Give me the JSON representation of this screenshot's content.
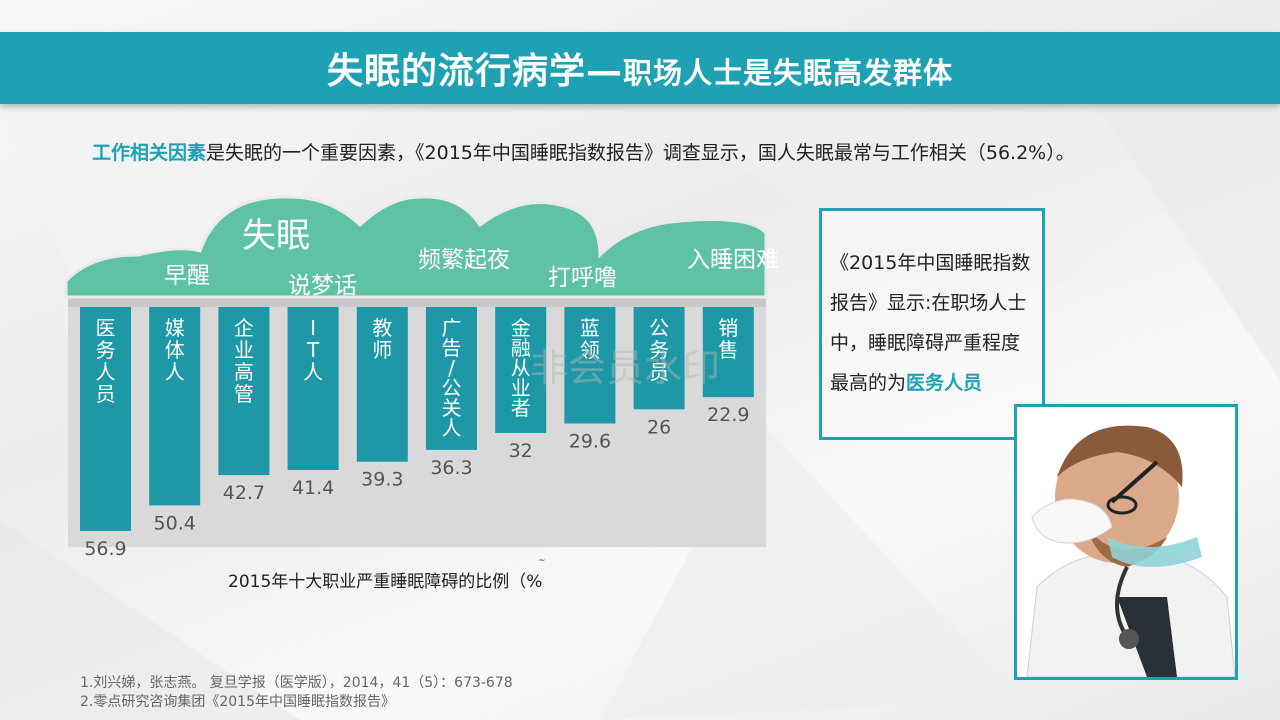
{
  "slide": {
    "title_main": "失眠的流行病学—",
    "title_sub": "职场人士是失眠高发群体"
  },
  "intro": {
    "highlight": "工作相关因素",
    "text": "是失眠的一个重要因素，《2015年中国睡眠指数报告》调查显示，国人失眠最常与工作相关（56.2%）。"
  },
  "cloud_labels": [
    "失眠",
    "早醒",
    "说梦话",
    "频繁起夜",
    "打呼噜",
    "入睡困难"
  ],
  "watermark": "非会员水印",
  "chart_data": {
    "type": "bar",
    "title": "2015年十大职业严重睡眠障碍的比例（%",
    "categories": [
      "医务人员",
      "媒体人",
      "企业高管",
      "IT人",
      "教师",
      "广告/公关人",
      "金融从业者",
      "蓝领",
      "公务员",
      "销售"
    ],
    "category_text": [
      "医\n务\n人\n员",
      "媒\n体\n人",
      "企\n业\n高\n管",
      "I\nT\n人",
      "教\n师",
      "广\n告\n/\n公\n关\n人",
      "金\n融\n从\n业\n者",
      "蓝\n领",
      "公\n务\n员",
      "销\n售"
    ],
    "values": [
      56.9,
      50.4,
      42.7,
      41.4,
      39.3,
      36.3,
      32,
      29.6,
      26,
      22.9
    ],
    "value_labels": [
      "56.9",
      "50.4",
      "42.7",
      "41.4",
      "39.3",
      "36.3",
      "32",
      "29.6",
      "26",
      "22.9"
    ],
    "bar_color": "#1e97a7",
    "ylim": [
      0,
      60
    ]
  },
  "callout": {
    "text": "《2015年中国睡眠指数报告》显示:在职场人士中，睡眠障碍严重程度最高的为",
    "highlight": "医务人员"
  },
  "photo": {
    "subject": "doctor-with-stethoscope-tired"
  },
  "references": [
    "1.刘兴娣，张志燕。 复旦学报（医学版），2014，41（5）：673-678",
    "2.零点研究咨询集团《2015年中国睡眠指数报告》"
  ],
  "colors": {
    "accent": "#1ea2b3",
    "cloud": "#5fc2a6",
    "bar": "#1e97a7",
    "panel": "#d9d9d9"
  }
}
